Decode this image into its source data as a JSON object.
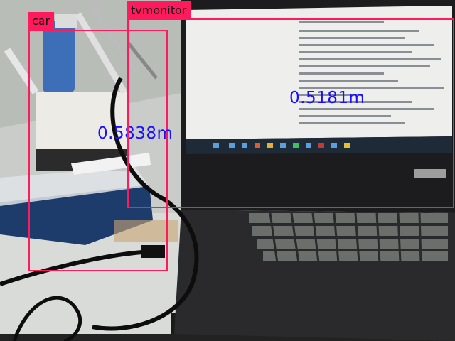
{
  "detections": [
    {
      "label": "car",
      "distance": "0.5838m"
    },
    {
      "label": "tvmonitor",
      "distance": "0.5181m"
    }
  ],
  "colors": {
    "box": "#ff1a5e",
    "distance_text": "#1a10ff"
  }
}
